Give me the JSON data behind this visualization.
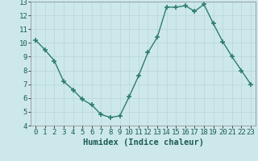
{
  "x": [
    0,
    1,
    2,
    3,
    4,
    5,
    6,
    7,
    8,
    9,
    10,
    11,
    12,
    13,
    14,
    15,
    16,
    17,
    18,
    19,
    20,
    21,
    22,
    23
  ],
  "y": [
    10.2,
    9.5,
    8.7,
    7.2,
    6.6,
    5.9,
    5.5,
    4.8,
    4.6,
    4.7,
    6.1,
    7.6,
    9.3,
    10.4,
    12.6,
    12.6,
    12.7,
    12.3,
    12.8,
    11.4,
    10.1,
    9.0,
    8.0,
    7.0
  ],
  "xlabel": "Humidex (Indice chaleur)",
  "ylabel": "",
  "xlim": [
    -0.5,
    23.5
  ],
  "ylim": [
    4,
    13
  ],
  "yticks": [
    4,
    5,
    6,
    7,
    8,
    9,
    10,
    11,
    12,
    13
  ],
  "xticks": [
    0,
    1,
    2,
    3,
    4,
    5,
    6,
    7,
    8,
    9,
    10,
    11,
    12,
    13,
    14,
    15,
    16,
    17,
    18,
    19,
    20,
    21,
    22,
    23
  ],
  "line_color": "#2e7d6e",
  "marker": "+",
  "marker_size": 4,
  "bg_color": "#cde8ea",
  "grid_color": "#b8d5d8",
  "xlabel_fontsize": 7.5,
  "tick_fontsize": 6.5
}
